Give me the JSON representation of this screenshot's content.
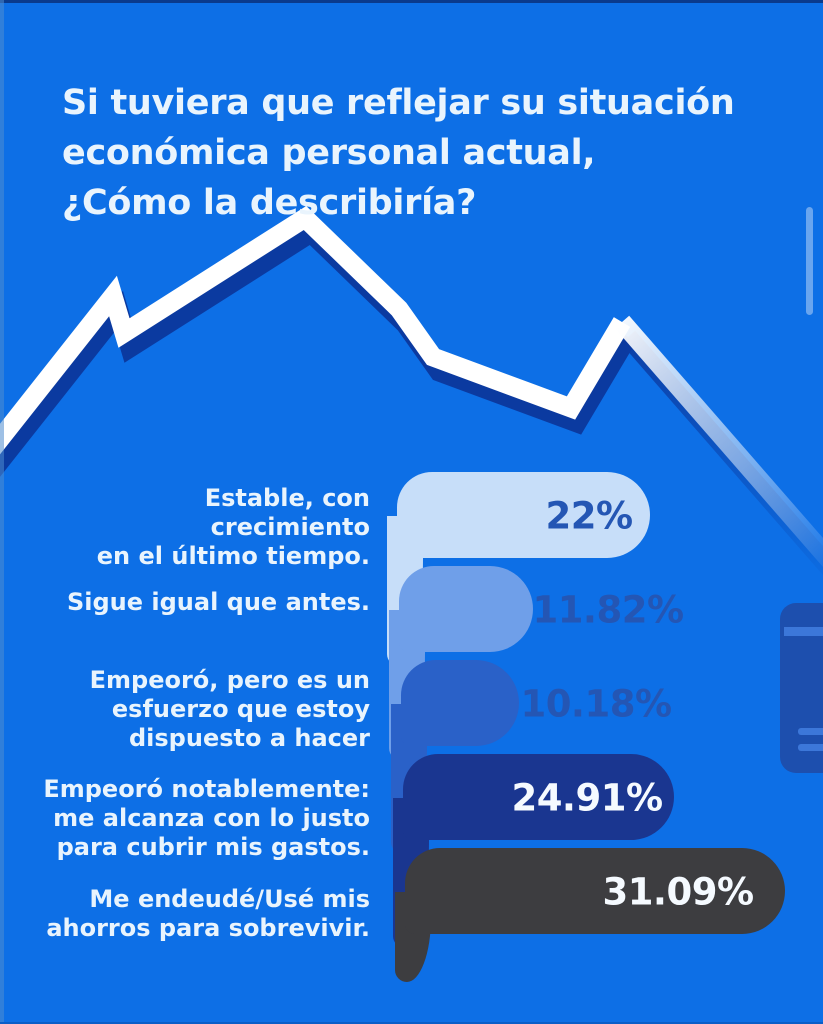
{
  "title_display": "Si tuviera que reflejar su situación\neconómica personal actual,\n¿Cómo la describiría?",
  "chart_data": {
    "type": "bar",
    "orientation": "horizontal",
    "title": "Si tuviera que reflejar su situación económica personal actual, ¿Cómo la describiría?",
    "categories": [
      "Estable, con crecimiento\nen el último tiempo.",
      "Sigue igual que antes.",
      "Empeoró, pero es un\nesfuerzo que estoy\ndispuesto a hacer",
      "Empeoró notablemente:\nme alcanza con lo justo\npara cubrir mis gastos.",
      "Me endeudé/Usé mis\nahorros para sobrevivir."
    ],
    "values": [
      22,
      11.82,
      10.18,
      24.91,
      31.09
    ],
    "value_labels": [
      "22%",
      "11.82%",
      "10.18%",
      "24.91%",
      "31.09%"
    ],
    "bar_colors": [
      "#c7def9",
      "#6f9fe9",
      "#2a61c8",
      "#1a3690",
      "#3d3d40"
    ],
    "value_label_colors": [
      "#2456b4",
      "#2456b4",
      "#2456b4",
      "#f5faff",
      "#f5faff"
    ],
    "xlim": [
      0,
      35
    ],
    "grid": false,
    "legend": false,
    "background_color": "#0d6fe6",
    "text_color": "#e9f4fd",
    "trend_line": {
      "description": "decorative zigzag trend line rising then falling",
      "color": "#ffffff",
      "shadow_color": "#0b3aa0"
    },
    "card_color": "#1d4fae"
  }
}
